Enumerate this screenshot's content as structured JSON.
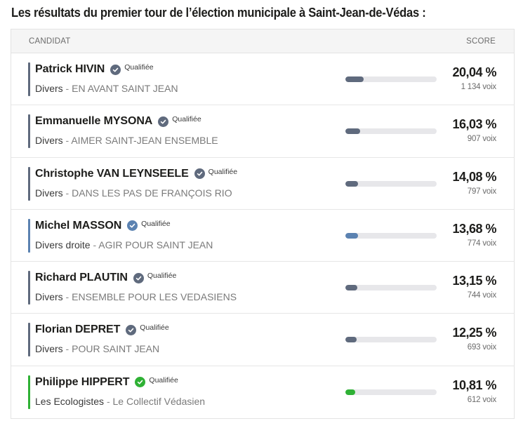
{
  "title": "Les résultats du premier tour de l’élection municipale à Saint-Jean-de-Védas :",
  "table": {
    "header_candidate": "CANDIDAT",
    "header_score": "SCORE"
  },
  "colors": {
    "divers": "#5f6a7d",
    "divers_droite": "#5b82b1",
    "ecologistes": "#2fb135"
  },
  "candidates": [
    {
      "name": "Patrick HIVIN",
      "status": "Qualifiée",
      "nuance": "Divers",
      "separator": " - ",
      "list": "EN AVANT SAINT JEAN",
      "score": "20,04 %",
      "score_value": 20.04,
      "votes": "1 134 voix",
      "color": "#5f6a7d",
      "check_icon": "check-circle-icon"
    },
    {
      "name": "Emmanuelle MYSONA",
      "status": "Qualifiée",
      "nuance": "Divers",
      "separator": " - ",
      "list": "AIMER SAINT-JEAN ENSEMBLE",
      "score": "16,03 %",
      "score_value": 16.03,
      "votes": "907 voix",
      "color": "#5f6a7d",
      "check_icon": "check-circle-icon"
    },
    {
      "name": "Christophe VAN LEYNSEELE",
      "status": "Qualifiée",
      "nuance": "Divers",
      "separator": " - ",
      "list": "DANS LES PAS DE FRANÇOIS RIO",
      "score": "14,08 %",
      "score_value": 14.08,
      "votes": "797 voix",
      "color": "#5f6a7d",
      "check_icon": "check-circle-icon"
    },
    {
      "name": "Michel MASSON",
      "status": "Qualifiée",
      "nuance": "Divers droite",
      "separator": " - ",
      "list": "AGIR POUR SAINT JEAN",
      "score": "13,68 %",
      "score_value": 13.68,
      "votes": "774 voix",
      "color": "#5b82b1",
      "check_icon": "check-circle-icon"
    },
    {
      "name": "Richard PLAUTIN",
      "status": "Qualifiée",
      "nuance": "Divers",
      "separator": " - ",
      "list": "ENSEMBLE POUR LES VEDASIENS",
      "score": "13,15 %",
      "score_value": 13.15,
      "votes": "744 voix",
      "color": "#5f6a7d",
      "check_icon": "check-circle-icon"
    },
    {
      "name": "Florian DEPRET",
      "status": "Qualifiée",
      "nuance": "Divers",
      "separator": " - ",
      "list": "POUR SAINT JEAN",
      "score": "12,25 %",
      "score_value": 12.25,
      "votes": "693 voix",
      "color": "#5f6a7d",
      "check_icon": "check-circle-icon"
    },
    {
      "name": "Philippe HIPPERT",
      "status": "Qualifiée",
      "nuance": "Les Ecologistes",
      "separator": " - ",
      "list": "Le Collectif Védasien",
      "score": "10,81 %",
      "score_value": 10.81,
      "votes": "612 voix",
      "color": "#2fb135",
      "check_icon": "check-circle-icon"
    }
  ]
}
